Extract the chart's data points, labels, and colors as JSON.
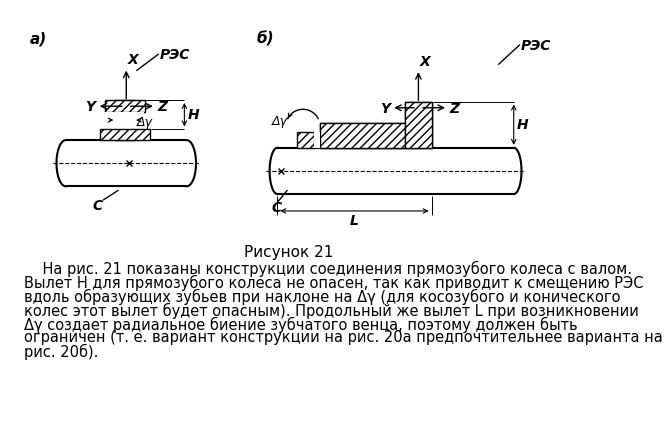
{
  "title": "Рисунок 21",
  "body_text_line1": "    На рис. 21 показаны конструкции соединения прямозубого колеса с валом.",
  "body_text_line2": "Вылет H для прямозубого колеса не опасен, так как приводит к смещению РЭС",
  "body_text_line3": "вдоль образующих зубьев при наклоне на Δγ (для косозубого и конического",
  "body_text_line4": "колес этот вылет будет опасным). Продольный же вылет L при возникновении",
  "body_text_line5": "Δγ создает радиальное биение зубчатого венца, поэтому должен быть",
  "body_text_line6": "ограничен (т. е. вариант конструкции на рис. 20а предпочтительнее варианта на",
  "body_text_line7": "рис. 20б).",
  "bg_color": "#ffffff",
  "line_color": "#000000",
  "font_size_title": 11,
  "font_size_body": 10.5,
  "font_size_labels": 11
}
